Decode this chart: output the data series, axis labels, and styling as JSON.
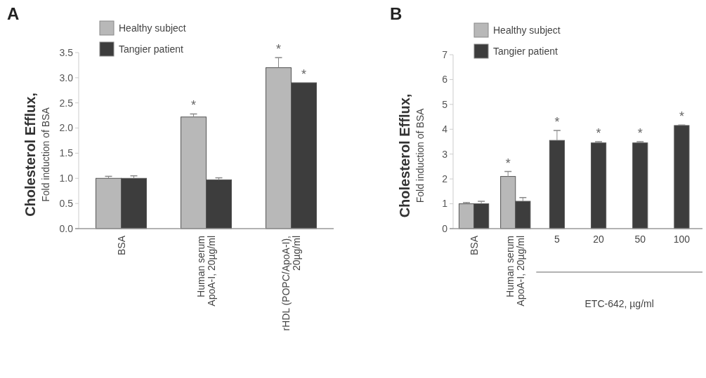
{
  "chart_data": [
    {
      "type": "bar",
      "title": "A",
      "ylabel": "Cholesterol Efflux,\nFold induction of BSA",
      "categories": [
        "BSA",
        "Human serum\nApoA-I, 20µg/ml",
        "rHDL (POPC/ApoA-I),\n20µg/ml"
      ],
      "series": [
        {
          "name": "Healthy subject",
          "color": "#b8b8b8",
          "values": [
            1.0,
            2.22,
            3.2
          ],
          "errors": [
            0.04,
            0.06,
            0.2
          ]
        },
        {
          "name": "Tangier patient",
          "color": "#3d3d3d",
          "values": [
            1.0,
            0.97,
            2.9
          ],
          "errors": [
            0.05,
            0.04,
            null
          ]
        }
      ],
      "ylim": [
        0,
        3.5
      ],
      "yticks": [
        {
          "value": 0,
          "label": "0.0"
        },
        {
          "value": 0.5,
          "label": "0.5"
        },
        {
          "value": 1,
          "label": "1.0"
        },
        {
          "value": 1.5,
          "label": "1.5"
        },
        {
          "value": 2,
          "label": "2.0"
        },
        {
          "value": 2.5,
          "label": "2.5"
        },
        {
          "value": 3,
          "label": "3.0"
        },
        {
          "value": 3.5,
          "label": "3.5"
        }
      ],
      "annotations": [
        {
          "text": "*",
          "x": "Human serum\nApoA-I, 20µg/ml",
          "y": 2.22
        },
        {
          "text": "*",
          "x": "rHDL (POPC/ApoA-I),\n20µg/ml",
          "y": 3.2
        },
        {
          "text": "*",
          "x": "rHDL (POPC/ApoA-I),\n20µg/ml",
          "y": 2.9
        }
      ],
      "legend": "top left",
      "grid": false
    },
    {
      "type": "bar",
      "title": "B",
      "ylabel": "Cholesterol Efflux,\nFold induction of BSA",
      "xlabel": "ETC-642, µg/ml",
      "categories": [
        "BSA",
        "Human serum\nApoA-I, 20µg/ml",
        "5",
        "20",
        "50",
        "100"
      ],
      "series": [
        {
          "name": "Healthy subject",
          "color": "#b8b8b8",
          "values": [
            1.0,
            2.1,
            null,
            null,
            null,
            null
          ],
          "errors": [
            0.05,
            0.2,
            null,
            null,
            null,
            null
          ]
        },
        {
          "name": "Tangier patient",
          "color": "#3d3d3d",
          "values": [
            1.0,
            1.1,
            3.55,
            3.45,
            3.45,
            4.15
          ],
          "errors": [
            0.1,
            0.15,
            0.4,
            0.05,
            0.05,
            0.02
          ]
        }
      ],
      "ylim": [
        0,
        7
      ],
      "yticks": [
        0,
        1,
        2,
        3,
        4,
        5,
        6,
        7
      ],
      "annotations": [
        {
          "text": "*",
          "x": "Human serum\nApoA-I, 20µg/ml",
          "y": 2.1
        },
        {
          "text": "*",
          "x": "5",
          "y": 3.55
        },
        {
          "text": "*",
          "x": "20",
          "y": 3.45
        },
        {
          "text": "*",
          "x": "50",
          "y": 3.45
        },
        {
          "text": "*",
          "x": "100",
          "y": 4.15
        }
      ],
      "legend": "top left",
      "grid": false
    }
  ]
}
